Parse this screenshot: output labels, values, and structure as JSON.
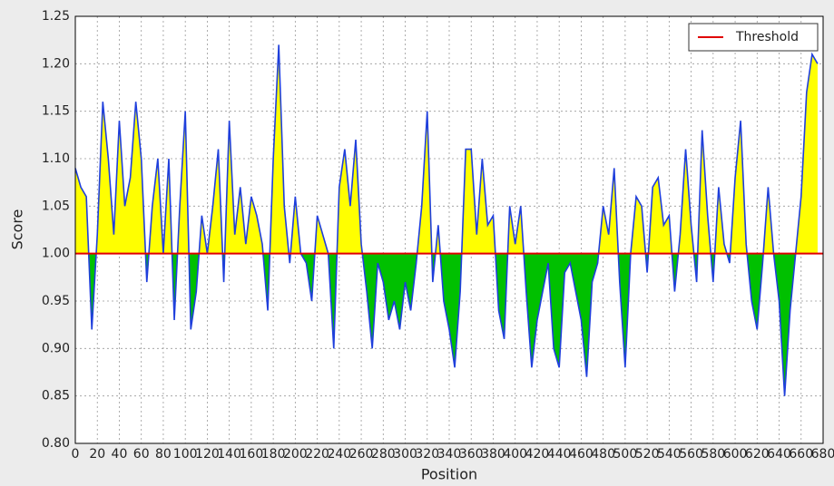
{
  "chart_data": {
    "type": "line",
    "xlabel": "Position",
    "ylabel": "Score",
    "x": [
      0,
      5,
      10,
      15,
      20,
      25,
      30,
      35,
      40,
      45,
      50,
      55,
      60,
      65,
      70,
      75,
      80,
      85,
      90,
      95,
      100,
      105,
      110,
      115,
      120,
      125,
      130,
      135,
      140,
      145,
      150,
      155,
      160,
      165,
      170,
      175,
      180,
      185,
      190,
      195,
      200,
      205,
      210,
      215,
      220,
      225,
      230,
      235,
      240,
      245,
      250,
      255,
      260,
      265,
      270,
      275,
      280,
      285,
      290,
      295,
      300,
      305,
      310,
      315,
      320,
      325,
      330,
      335,
      340,
      345,
      350,
      355,
      360,
      365,
      370,
      375,
      380,
      385,
      390,
      395,
      400,
      405,
      410,
      415,
      420,
      425,
      430,
      435,
      440,
      445,
      450,
      455,
      460,
      465,
      470,
      475,
      480,
      485,
      490,
      495,
      500,
      505,
      510,
      515,
      520,
      525,
      530,
      535,
      540,
      545,
      550,
      555,
      560,
      565,
      570,
      575,
      580,
      585,
      590,
      595,
      600,
      605,
      610,
      615,
      620,
      625,
      630,
      635,
      640,
      645,
      650,
      655,
      660,
      665,
      670,
      675
    ],
    "series": [
      {
        "color": "#1f3fdc",
        "fill_above": "#ffff00",
        "fill_below": "#00c000",
        "values": [
          1.09,
          1.07,
          1.06,
          0.92,
          1.02,
          1.16,
          1.1,
          1.02,
          1.14,
          1.05,
          1.08,
          1.16,
          1.1,
          0.97,
          1.05,
          1.1,
          1.0,
          1.1,
          0.93,
          1.05,
          1.15,
          0.92,
          0.96,
          1.04,
          1.0,
          1.05,
          1.11,
          0.97,
          1.14,
          1.02,
          1.07,
          1.01,
          1.06,
          1.04,
          1.01,
          0.94,
          1.1,
          1.22,
          1.05,
          0.99,
          1.06,
          1.0,
          0.99,
          0.95,
          1.04,
          1.02,
          1.0,
          0.9,
          1.07,
          1.11,
          1.05,
          1.12,
          1.01,
          0.96,
          0.9,
          0.99,
          0.97,
          0.93,
          0.95,
          0.92,
          0.97,
          0.94,
          0.99,
          1.05,
          1.15,
          0.97,
          1.03,
          0.95,
          0.92,
          0.88,
          0.96,
          1.11,
          1.11,
          1.02,
          1.1,
          1.03,
          1.04,
          0.94,
          0.91,
          1.05,
          1.01,
          1.05,
          0.96,
          0.88,
          0.93,
          0.96,
          0.99,
          0.9,
          0.88,
          0.98,
          0.99,
          0.96,
          0.93,
          0.87,
          0.97,
          0.99,
          1.05,
          1.02,
          1.09,
          0.97,
          0.88,
          1.0,
          1.06,
          1.05,
          0.98,
          1.07,
          1.08,
          1.03,
          1.04,
          0.96,
          1.02,
          1.11,
          1.03,
          0.97,
          1.13,
          1.04,
          0.97,
          1.07,
          1.01,
          0.99,
          1.08,
          1.14,
          1.01,
          0.95,
          0.92,
          0.99,
          1.07,
          1.0,
          0.95,
          0.85,
          0.94,
          1.0,
          1.06,
          1.17,
          1.21,
          1.2
        ]
      }
    ],
    "threshold": {
      "name": "Threshold",
      "value": 1.0,
      "color": "#e00000"
    },
    "xlim": [
      0,
      680
    ],
    "xticks": [
      0,
      20,
      40,
      60,
      80,
      100,
      120,
      140,
      160,
      180,
      200,
      220,
      240,
      260,
      280,
      300,
      320,
      340,
      360,
      380,
      400,
      420,
      440,
      460,
      480,
      500,
      520,
      540,
      560,
      580,
      600,
      620,
      640,
      660,
      680
    ],
    "ylim": [
      0.8,
      1.25
    ],
    "yticks": [
      {
        "value": 0.8,
        "label": "0.80"
      },
      0.85,
      {
        "value": 0.9,
        "label": "0.90"
      },
      0.95,
      {
        "value": 1.0,
        "label": "1.00"
      },
      1.05,
      {
        "value": 1.1,
        "label": "1.10"
      },
      1.15,
      {
        "value": 1.2,
        "label": "1.20"
      },
      1.25
    ],
    "grid": true,
    "legend": "upper right"
  }
}
